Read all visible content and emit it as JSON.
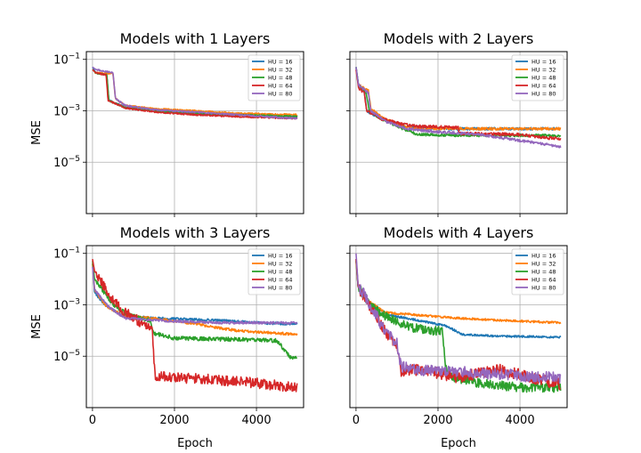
{
  "chart_data": [
    {
      "type": "line",
      "title": "Models with 1 Layers",
      "ylabel": "MSE",
      "xlabel": "",
      "xlim": [
        -150,
        5150
      ],
      "ylim": [
        1e-07,
        0.2
      ],
      "y_scale": "log",
      "xticks": [
        0,
        2000,
        4000
      ],
      "xtick_labels": [
        "0",
        "2000",
        "4000"
      ],
      "yticks": [
        0.1,
        0.001,
        1e-05
      ],
      "ytick_labels": [
        "10^-1",
        "10^-3",
        "10^-5"
      ],
      "grid": true,
      "legend_position": "top-right",
      "show_x_tick_labels": false,
      "show_y_tick_labels": true,
      "series": [
        {
          "name": "HU = 16",
          "color": "#1f77b4",
          "noise": 0.03,
          "x": [
            0,
            80,
            350,
            400,
            800,
            1500,
            2500,
            3500,
            5000
          ],
          "y": [
            0.05,
            0.03,
            0.025,
            0.0025,
            0.0014,
            0.001,
            0.0008,
            0.0007,
            0.0006
          ]
        },
        {
          "name": "HU = 32",
          "color": "#ff7f0e",
          "noise": 0.03,
          "x": [
            0,
            80,
            500,
            560,
            800,
            1500,
            2500,
            3500,
            5000
          ],
          "y": [
            0.04,
            0.03,
            0.028,
            0.003,
            0.0016,
            0.0012,
            0.001,
            0.0008,
            0.0007
          ]
        },
        {
          "name": "HU = 48",
          "color": "#2ca02c",
          "noise": 0.03,
          "x": [
            0,
            80,
            350,
            400,
            800,
            1500,
            2500,
            3500,
            5000
          ],
          "y": [
            0.04,
            0.03,
            0.025,
            0.0025,
            0.0013,
            0.001,
            0.0008,
            0.0007,
            0.0006
          ]
        },
        {
          "name": "HU = 64",
          "color": "#d62728",
          "noise": 0.03,
          "x": [
            0,
            80,
            330,
            380,
            800,
            1500,
            2500,
            3500,
            5000
          ],
          "y": [
            0.04,
            0.03,
            0.025,
            0.0025,
            0.0013,
            0.0009,
            0.0007,
            0.0006,
            0.0005
          ]
        },
        {
          "name": "HU = 80",
          "color": "#9467bd",
          "noise": 0.03,
          "x": [
            0,
            80,
            500,
            560,
            800,
            1500,
            2500,
            3500,
            5000
          ],
          "y": [
            0.05,
            0.04,
            0.03,
            0.003,
            0.0016,
            0.0011,
            0.0009,
            0.0007,
            0.0005
          ]
        }
      ]
    },
    {
      "type": "line",
      "title": "Models with 2 Layers",
      "ylabel": "",
      "xlabel": "",
      "xlim": [
        -150,
        5150
      ],
      "ylim": [
        1e-07,
        0.2
      ],
      "y_scale": "log",
      "xticks": [
        0,
        2000,
        4000
      ],
      "xtick_labels": [
        "0",
        "2000",
        "4000"
      ],
      "yticks": [
        0.1,
        0.001,
        1e-05
      ],
      "ytick_labels": [
        "10^-1",
        "10^-3",
        "10^-5"
      ],
      "grid": true,
      "legend_position": "top-right",
      "show_x_tick_labels": false,
      "show_y_tick_labels": false,
      "series": [
        {
          "name": "HU = 16",
          "color": "#1f77b4",
          "noise": 0.05,
          "x": [
            0,
            60,
            200,
            260,
            500,
            800,
            1200,
            2000,
            3000,
            5000
          ],
          "y": [
            0.05,
            0.01,
            0.006,
            0.001,
            0.0006,
            0.0004,
            0.00025,
            0.0002,
            0.0002,
            0.0002
          ]
        },
        {
          "name": "HU = 32",
          "color": "#ff7f0e",
          "noise": 0.05,
          "x": [
            0,
            60,
            300,
            360,
            600,
            1000,
            1500,
            2500,
            3500,
            5000
          ],
          "y": [
            0.04,
            0.01,
            0.006,
            0.0012,
            0.0006,
            0.0003,
            0.0002,
            0.0002,
            0.0002,
            0.0002
          ]
        },
        {
          "name": "HU = 48",
          "color": "#2ca02c",
          "noise": 0.05,
          "x": [
            0,
            60,
            250,
            320,
            600,
            1000,
            1500,
            2500,
            3500,
            5000
          ],
          "y": [
            0.05,
            0.01,
            0.005,
            0.001,
            0.0005,
            0.00025,
            0.00012,
            0.00011,
            0.00011,
            0.00011
          ]
        },
        {
          "name": "HU = 64",
          "color": "#d62728",
          "noise": 0.06,
          "x": [
            0,
            60,
            200,
            260,
            600,
            1100,
            1500,
            2499,
            2500,
            4000,
            4600,
            5000
          ],
          "y": [
            0.04,
            0.008,
            0.005,
            0.001,
            0.0005,
            0.0003,
            0.00025,
            0.00022,
            0.00013,
            0.00012,
            9e-05,
            8e-05
          ]
        },
        {
          "name": "HU = 80",
          "color": "#9467bd",
          "noise": 0.05,
          "x": [
            0,
            60,
            300,
            360,
            700,
            1200,
            2000,
            3000,
            4000,
            5000
          ],
          "y": [
            0.05,
            0.01,
            0.005,
            0.001,
            0.0004,
            0.0002,
            0.00015,
            0.00012,
            7e-05,
            4e-05
          ]
        }
      ]
    },
    {
      "type": "line",
      "title": "Models with 3 Layers",
      "ylabel": "MSE",
      "xlabel": "Epoch",
      "xlim": [
        -150,
        5150
      ],
      "ylim": [
        1e-07,
        0.2
      ],
      "y_scale": "log",
      "xticks": [
        0,
        2000,
        4000
      ],
      "xtick_labels": [
        "0",
        "2000",
        "4000"
      ],
      "yticks": [
        0.1,
        0.001,
        1e-05
      ],
      "ytick_labels": [
        "10^-1",
        "10^-3",
        "10^-5"
      ],
      "grid": true,
      "legend_position": "top-right",
      "show_x_tick_labels": true,
      "show_y_tick_labels": true,
      "series": [
        {
          "name": "HU = 16",
          "color": "#1f77b4",
          "noise": 0.05,
          "x": [
            0,
            50,
            300,
            700,
            1500,
            3000,
            4000,
            5000
          ],
          "y": [
            0.04,
            0.003,
            0.001,
            0.0004,
            0.0003,
            0.00025,
            0.0002,
            0.00018
          ]
        },
        {
          "name": "HU = 32",
          "color": "#ff7f0e",
          "noise": 0.05,
          "x": [
            0,
            50,
            300,
            700,
            1500,
            2500,
            3500,
            5000
          ],
          "y": [
            0.04,
            0.004,
            0.001,
            0.0004,
            0.0003,
            0.00018,
            0.0001,
            7e-05
          ]
        },
        {
          "name": "HU = 48",
          "color": "#2ca02c",
          "noise": 0.08,
          "x": [
            0,
            50,
            500,
            900,
            1200,
            1400,
            1500,
            2000,
            3500,
            4500,
            4800,
            5000
          ],
          "y": [
            0.05,
            0.01,
            0.001,
            0.0004,
            0.0003,
            0.00025,
            8e-05,
            5e-05,
            4.5e-05,
            4e-05,
            1e-05,
            8e-06
          ]
        },
        {
          "name": "HU = 64",
          "color": "#d62728",
          "noise": 0.2,
          "x": [
            0,
            50,
            500,
            800,
            1200,
            1400,
            1460,
            1520,
            2000,
            3000,
            4000,
            5000
          ],
          "y": [
            0.06,
            0.02,
            0.0015,
            0.0005,
            0.0002,
            0.00015,
            0.0001,
            1.8e-06,
            1.5e-06,
            1.2e-06,
            9e-07,
            6e-07
          ]
        },
        {
          "name": "HU = 80",
          "color": "#9467bd",
          "noise": 0.05,
          "x": [
            0,
            50,
            400,
            800,
            1500,
            3000,
            5000
          ],
          "y": [
            0.03,
            0.004,
            0.0008,
            0.0003,
            0.00025,
            0.0002,
            0.0002
          ]
        }
      ]
    },
    {
      "type": "line",
      "title": "Models with 4 Layers",
      "ylabel": "",
      "xlabel": "Epoch",
      "xlim": [
        -150,
        5150
      ],
      "ylim": [
        1e-07,
        0.2
      ],
      "y_scale": "log",
      "xticks": [
        0,
        2000,
        4000
      ],
      "xtick_labels": [
        "0",
        "2000",
        "4000"
      ],
      "yticks": [
        0.1,
        0.001,
        1e-05
      ],
      "ytick_labels": [
        "10^-1",
        "10^-3",
        "10^-5"
      ],
      "grid": true,
      "legend_position": "top-right",
      "show_x_tick_labels": true,
      "show_y_tick_labels": false,
      "series": [
        {
          "name": "HU = 16",
          "color": "#1f77b4",
          "noise": 0.04,
          "x": [
            0,
            50,
            300,
            800,
            1500,
            2200,
            2600,
            3500,
            5000
          ],
          "y": [
            0.06,
            0.005,
            0.0012,
            0.0004,
            0.00025,
            0.00015,
            7e-05,
            6e-05,
            5.5e-05
          ]
        },
        {
          "name": "HU = 32",
          "color": "#ff7f0e",
          "noise": 0.04,
          "x": [
            0,
            50,
            300,
            700,
            1500,
            2500,
            3500,
            5000
          ],
          "y": [
            0.06,
            0.006,
            0.0015,
            0.0005,
            0.0004,
            0.0003,
            0.00025,
            0.0002
          ]
        },
        {
          "name": "HU = 48",
          "color": "#2ca02c",
          "noise": 0.18,
          "x": [
            0,
            50,
            400,
            800,
            1200,
            1700,
            2100,
            2200,
            2400,
            3000,
            4000,
            5000
          ],
          "y": [
            0.05,
            0.005,
            0.0008,
            0.0003,
            0.00015,
            0.0001,
            0.0001,
            2.5e-06,
            1.5e-06,
            9e-07,
            6e-07,
            6e-07
          ]
        },
        {
          "name": "HU = 64",
          "color": "#d62728",
          "noise": 0.22,
          "x": [
            0,
            50,
            400,
            700,
            1000,
            1100,
            1500,
            2500,
            3500,
            4500,
            5000
          ],
          "y": [
            0.06,
            0.005,
            0.0006,
            0.0001,
            2e-05,
            2.5e-06,
            3e-06,
            1.5e-06,
            3e-06,
            1.2e-06,
            8e-07
          ]
        },
        {
          "name": "HU = 80",
          "color": "#9467bd",
          "noise": 0.22,
          "x": [
            0,
            50,
            400,
            700,
            1000,
            1100,
            1500,
            2500,
            3500,
            4500,
            5000
          ],
          "y": [
            0.1,
            0.006,
            0.0007,
            0.0001,
            3e-05,
            4e-06,
            3e-06,
            2.5e-06,
            2e-06,
            1.5e-06,
            1.5e-06
          ]
        }
      ]
    }
  ]
}
